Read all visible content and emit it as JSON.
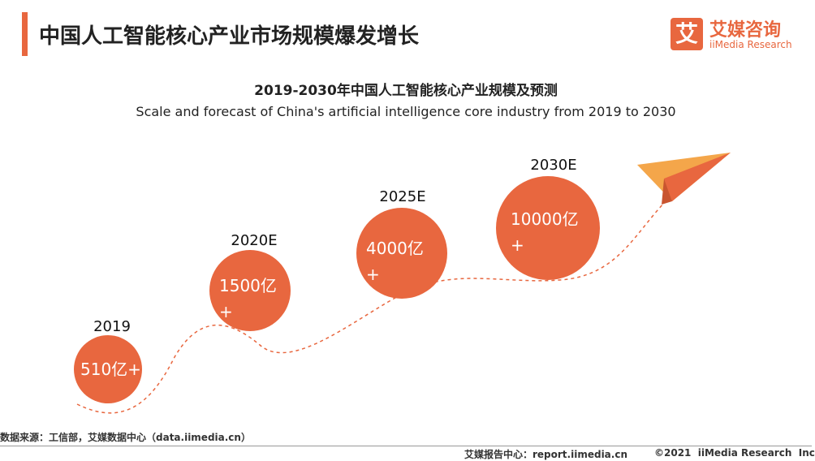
{
  "header": {
    "title": "中国人工智能核心产业市场规模爆发增长",
    "logo_icon": "艾",
    "logo_cn": "艾媒咨询",
    "logo_en": "iiMedia Research"
  },
  "content": {
    "title_cn": "2019-2030年中国人工智能核心产业规模及预测",
    "title_en": "Scale and forecast of China's artificial intelligence core industry from 2019 to 2030",
    "milestones": [
      {
        "year": "2019",
        "value": "510亿+"
      },
      {
        "year": "2020E",
        "value": "1500亿+"
      },
      {
        "year": "2025E",
        "value": "4000亿+"
      },
      {
        "year": "2030E",
        "value": "10000亿+"
      }
    ]
  },
  "footer": {
    "source": "数据来源：工信部，艾媒数据中心（data.iimedia.cn）",
    "report_center": "艾媒报告中心：report.iimedia.cn",
    "copyright": "©2021  iiMedia Research  Inc"
  }
}
